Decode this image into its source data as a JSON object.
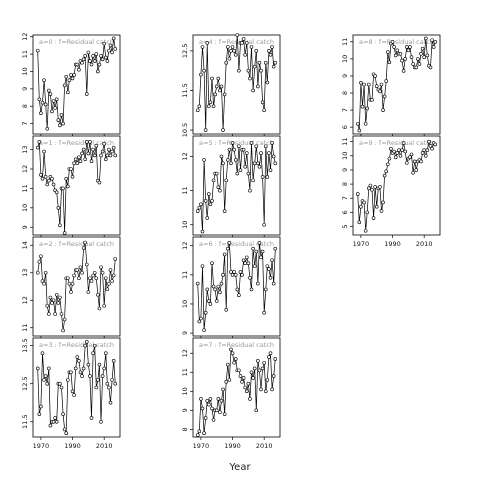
{
  "chart_data": {
    "type": "line",
    "xlabel": "Year",
    "x_ticks": [
      1970,
      1990,
      2010
    ],
    "xlim": [
      1965,
      2020
    ],
    "marker": "open-circle",
    "line_color": "#000000",
    "strip_text_color": "#999999",
    "panels": [
      {
        "label": "a=0 : f=Residual catch",
        "ylim": [
          6.4,
          12.1
        ],
        "yticks": [
          7,
          8,
          9,
          10,
          11,
          12
        ],
        "years": [
          1968,
          1969,
          1970,
          1971,
          1972,
          1973,
          1974,
          1975,
          1976,
          1977,
          1978,
          1979,
          1980,
          1981,
          1982,
          1983,
          1984,
          1985,
          1986,
          1987,
          1988,
          1989,
          1990,
          1991,
          1992,
          1993,
          1994,
          1995,
          1996,
          1997,
          1998,
          1999,
          2000,
          2001,
          2002,
          2003,
          2004,
          2005,
          2006,
          2007,
          2008,
          2009,
          2010,
          2011,
          2012,
          2013,
          2014,
          2015,
          2016,
          2017
        ],
        "values": [
          11.2,
          8.4,
          7.6,
          8.2,
          9.5,
          8.1,
          6.7,
          8.9,
          8.7,
          7.7,
          8.3,
          7.9,
          8.4,
          7.2,
          6.9,
          7.5,
          7.0,
          9.2,
          9.7,
          8.8,
          9.5,
          9.8,
          9.6,
          9.8,
          10.4,
          10.4,
          10.1,
          10.6,
          10.5,
          10.7,
          10.9,
          8.7,
          11.1,
          10.6,
          10.4,
          10.9,
          10.6,
          11.0,
          10.0,
          10.4,
          10.9,
          10.7,
          11.6,
          10.8,
          10.6,
          11.2,
          11.5,
          11.1,
          11.9,
          11.3
        ]
      },
      {
        "label": "a=1 : f=Residual catch",
        "ylim": [
          8.6,
          13.7
        ],
        "yticks": [
          9,
          10,
          11,
          12,
          13
        ],
        "years": [
          1968,
          1969,
          1970,
          1971,
          1972,
          1973,
          1974,
          1975,
          1976,
          1977,
          1978,
          1979,
          1980,
          1981,
          1982,
          1983,
          1984,
          1985,
          1986,
          1987,
          1988,
          1989,
          1990,
          1991,
          1992,
          1993,
          1994,
          1995,
          1996,
          1997,
          1998,
          1999,
          2000,
          2001,
          2002,
          2003,
          2004,
          2005,
          2006,
          2007,
          2008,
          2009,
          2010,
          2011,
          2012,
          2013,
          2014,
          2015,
          2016,
          2017
        ],
        "values": [
          13.1,
          13.4,
          11.7,
          11.5,
          12.9,
          11.6,
          11.2,
          11.4,
          11.6,
          11.5,
          11.2,
          10.9,
          10.8,
          10.0,
          9.1,
          11.0,
          11.0,
          8.7,
          11.5,
          11.1,
          12.0,
          12.0,
          11.6,
          12.3,
          12.5,
          12.3,
          12.6,
          12.4,
          12.8,
          13.0,
          12.5,
          13.4,
          12.8,
          13.4,
          12.4,
          13.0,
          12.7,
          13.2,
          11.4,
          11.3,
          12.7,
          12.9,
          13.3,
          12.5,
          12.7,
          13.0,
          12.7,
          12.9,
          13.1,
          12.7
        ]
      },
      {
        "label": "a=2 : f=Residual catch",
        "ylim": [
          10.7,
          14.3
        ],
        "yticks": [
          11.0,
          12.0,
          13.0,
          14.0
        ],
        "years": [
          1968,
          1969,
          1970,
          1971,
          1972,
          1973,
          1974,
          1975,
          1976,
          1977,
          1978,
          1979,
          1980,
          1981,
          1982,
          1983,
          1984,
          1985,
          1986,
          1987,
          1988,
          1989,
          1990,
          1991,
          1992,
          1993,
          1994,
          1995,
          1996,
          1997,
          1998,
          1999,
          2000,
          2001,
          2002,
          2003,
          2004,
          2005,
          2006,
          2007,
          2008,
          2009,
          2010,
          2011,
          2012,
          2013,
          2014,
          2015,
          2016,
          2017
        ],
        "values": [
          13.0,
          13.4,
          13.6,
          12.7,
          12.6,
          13.0,
          11.8,
          11.5,
          12.1,
          11.9,
          12.0,
          11.5,
          12.2,
          11.9,
          12.1,
          11.5,
          10.9,
          11.3,
          12.8,
          12.8,
          12.6,
          12.3,
          12.6,
          12.9,
          13.1,
          13.1,
          12.8,
          13.2,
          13.0,
          13.9,
          14.1,
          13.3,
          12.3,
          12.8,
          12.7,
          12.9,
          13.0,
          12.8,
          12.2,
          11.7,
          13.2,
          13.0,
          11.8,
          12.8,
          12.4,
          12.6,
          13.1,
          12.7,
          12.9,
          13.5
        ]
      },
      {
        "label": "a=3 : f=Residual catch",
        "ylim": [
          11.1,
          13.7
        ],
        "yticks": [
          11.5,
          12.5,
          13.5
        ],
        "years": [
          1968,
          1969,
          1970,
          1971,
          1972,
          1973,
          1974,
          1975,
          1976,
          1977,
          1978,
          1979,
          1980,
          1981,
          1982,
          1983,
          1984,
          1985,
          1986,
          1987,
          1988,
          1989,
          1990,
          1991,
          1992,
          1993,
          1994,
          1995,
          1996,
          1997,
          1998,
          1999,
          2000,
          2001,
          2002,
          2003,
          2004,
          2005,
          2006,
          2007,
          2008,
          2009,
          2010,
          2011,
          2012,
          2013,
          2014,
          2015,
          2016,
          2017
        ],
        "values": [
          12.9,
          11.7,
          11.9,
          13.3,
          12.6,
          12.7,
          12.5,
          12.9,
          11.4,
          11.5,
          11.5,
          11.6,
          11.5,
          12.5,
          12.5,
          12.4,
          11.7,
          11.3,
          11.2,
          12.6,
          12.8,
          12.8,
          12.3,
          12.2,
          12.9,
          13.2,
          13.1,
          12.8,
          12.7,
          12.9,
          13.5,
          13.6,
          13.0,
          12.7,
          11.6,
          13.3,
          13.5,
          12.4,
          12.6,
          13.0,
          11.5,
          12.7,
          12.9,
          13.3,
          12.5,
          12.4,
          12.0,
          12.6,
          13.1,
          12.5
        ]
      },
      {
        "label": "a=4 : f=Residual catch",
        "ylim": [
          10.4,
          12.9
        ],
        "yticks": [
          10.5,
          11.5,
          12.5
        ],
        "years": [
          1968,
          1969,
          1970,
          1971,
          1972,
          1973,
          1974,
          1975,
          1976,
          1977,
          1978,
          1979,
          1980,
          1981,
          1982,
          1983,
          1984,
          1985,
          1986,
          1987,
          1988,
          1989,
          1990,
          1991,
          1992,
          1993,
          1994,
          1995,
          1996,
          1997,
          1998,
          1999,
          2000,
          2001,
          2002,
          2003,
          2004,
          2005,
          2006,
          2007,
          2008,
          2009,
          2010,
          2011,
          2012,
          2013,
          2014,
          2015,
          2016,
          2017
        ],
        "values": [
          11.0,
          11.1,
          11.9,
          12.6,
          12.0,
          10.5,
          12.7,
          11.1,
          11.2,
          11.8,
          11.1,
          11.4,
          11.6,
          11.8,
          11.5,
          11.6,
          10.5,
          11.4,
          12.2,
          12.6,
          12.3,
          12.5,
          12.6,
          12.5,
          12.4,
          12.9,
          12.0,
          12.7,
          12.7,
          12.8,
          12.4,
          12.7,
          12.0,
          11.8,
          12.6,
          11.5,
          12.1,
          12.5,
          11.6,
          12.2,
          12.0,
          11.2,
          11.0,
          12.2,
          11.7,
          12.5,
          12.4,
          12.6,
          12.1,
          12.2
        ]
      },
      {
        "label": "a=5 : f=Residual catch",
        "ylim": [
          9.7,
          12.6
        ],
        "yticks": [
          10.0,
          11.0,
          12.0
        ],
        "years": [
          1968,
          1969,
          1970,
          1971,
          1972,
          1973,
          1974,
          1975,
          1976,
          1977,
          1978,
          1979,
          1980,
          1981,
          1982,
          1983,
          1984,
          1985,
          1986,
          1987,
          1988,
          1989,
          1990,
          1991,
          1992,
          1993,
          1994,
          1995,
          1996,
          1997,
          1998,
          1999,
          2000,
          2001,
          2002,
          2003,
          2004,
          2005,
          2006,
          2007,
          2008,
          2009,
          2010,
          2011,
          2012,
          2013,
          2014,
          2015,
          2016,
          2017
        ],
        "values": [
          10.4,
          10.5,
          10.6,
          9.8,
          11.9,
          10.7,
          10.2,
          10.9,
          10.6,
          10.7,
          11.3,
          11.5,
          11.5,
          11.1,
          11.0,
          12.0,
          11.8,
          10.4,
          11.3,
          11.9,
          12.2,
          11.8,
          12.4,
          12.2,
          11.9,
          11.5,
          12.3,
          11.6,
          12.2,
          12.2,
          11.7,
          12.1,
          11.5,
          11.0,
          12.4,
          11.3,
          11.8,
          12.3,
          11.8,
          11.7,
          12.1,
          11.4,
          10.0,
          12.3,
          11.4,
          12.1,
          11.6,
          12.4,
          12.0,
          11.8
        ]
      },
      {
        "label": "a=6 : f=Residual catch",
        "ylim": [
          8.9,
          12.3
        ],
        "yticks": [
          9.0,
          10.0,
          11.0,
          12.0
        ],
        "years": [
          1968,
          1969,
          1970,
          1971,
          1972,
          1973,
          1974,
          1975,
          1976,
          1977,
          1978,
          1979,
          1980,
          1981,
          1982,
          1983,
          1984,
          1985,
          1986,
          1987,
          1988,
          1989,
          1990,
          1991,
          1992,
          1993,
          1994,
          1995,
          1996,
          1997,
          1998,
          1999,
          2000,
          2001,
          2002,
          2003,
          2004,
          2005,
          2006,
          2007,
          2008,
          2009,
          2010,
          2011,
          2012,
          2013,
          2014,
          2015,
          2016,
          2017
        ],
        "values": [
          10.7,
          9.4,
          9.5,
          11.3,
          9.1,
          9.7,
          10.5,
          10.1,
          10.0,
          11.4,
          10.6,
          10.5,
          10.1,
          10.6,
          10.4,
          10.7,
          11.0,
          11.7,
          9.8,
          11.9,
          12.1,
          11.1,
          11.0,
          11.1,
          11.0,
          10.5,
          10.3,
          11.1,
          11.0,
          11.5,
          11.4,
          11.6,
          11.4,
          10.9,
          10.5,
          11.9,
          11.3,
          11.8,
          10.7,
          12.1,
          11.6,
          11.8,
          9.7,
          10.5,
          11.3,
          11.2,
          10.9,
          11.5,
          10.7,
          11.9
        ]
      },
      {
        "label": "a=7 : f=Residual catch",
        "ylim": [
          7.6,
          12.8
        ],
        "yticks": [
          8,
          9,
          10,
          11,
          12
        ],
        "years": [
          1968,
          1969,
          1970,
          1971,
          1972,
          1973,
          1974,
          1975,
          1976,
          1977,
          1978,
          1979,
          1980,
          1981,
          1982,
          1983,
          1984,
          1985,
          1986,
          1987,
          1988,
          1989,
          1990,
          1991,
          1992,
          1993,
          1994,
          1995,
          1996,
          1997,
          1998,
          1999,
          2000,
          2001,
          2002,
          2003,
          2004,
          2005,
          2006,
          2007,
          2008,
          2009,
          2010,
          2011,
          2012,
          2013,
          2014,
          2015,
          2016,
          2017
        ],
        "values": [
          7.7,
          7.9,
          9.6,
          9.1,
          7.8,
          8.6,
          9.5,
          9.3,
          9.6,
          9.1,
          8.5,
          9.0,
          9.0,
          9.6,
          8.9,
          9.5,
          10.1,
          8.8,
          10.5,
          11.4,
          10.6,
          12.2,
          12.0,
          11.5,
          11.7,
          11.1,
          11.1,
          10.8,
          10.5,
          10.7,
          10.2,
          10.0,
          10.4,
          9.6,
          11.0,
          10.7,
          11.2,
          9.0,
          11.6,
          11.1,
          10.1,
          11.2,
          11.5,
          10.0,
          10.6,
          11.8,
          12.0,
          10.1,
          10.8,
          11.7
        ]
      },
      {
        "label": "a=8 : f=Residual catch",
        "ylim": [
          5.6,
          11.4
        ],
        "yticks": [
          6,
          7,
          8,
          9,
          10,
          11
        ],
        "years": [
          1968,
          1969,
          1970,
          1971,
          1972,
          1973,
          1974,
          1975,
          1976,
          1977,
          1978,
          1979,
          1980,
          1981,
          1982,
          1983,
          1984,
          1985,
          1986,
          1987,
          1988,
          1989,
          1990,
          1991,
          1992,
          1993,
          1994,
          1995,
          1996,
          1997,
          1998,
          1999,
          2000,
          2001,
          2002,
          2003,
          2004,
          2005,
          2006,
          2007,
          2008,
          2009,
          2010,
          2011,
          2012,
          2013,
          2014,
          2015,
          2016,
          2017
        ],
        "values": [
          6.2,
          5.8,
          8.6,
          7.2,
          8.5,
          6.2,
          7.1,
          8.5,
          7.6,
          7.6,
          9.1,
          9.0,
          8.4,
          8.2,
          8.1,
          8.5,
          7.0,
          7.8,
          8.7,
          10.4,
          9.8,
          10.9,
          11.0,
          10.7,
          10.2,
          10.5,
          10.3,
          10.3,
          9.9,
          9.3,
          10.0,
          10.7,
          10.5,
          10.7,
          10.1,
          9.7,
          9.5,
          9.5,
          10.0,
          9.7,
          10.3,
          10.6,
          10.1,
          11.2,
          10.2,
          9.6,
          9.5,
          11.1,
          10.7,
          11.0
        ]
      },
      {
        "label": "a=9 : f=Residual catch",
        "ylim": [
          4.4,
          11.4
        ],
        "yticks": [
          5,
          6,
          7,
          8,
          9,
          10,
          11
        ],
        "years": [
          1968,
          1969,
          1970,
          1971,
          1972,
          1973,
          1974,
          1975,
          1976,
          1977,
          1978,
          1979,
          1980,
          1981,
          1982,
          1983,
          1984,
          1985,
          1986,
          1987,
          1988,
          1989,
          1990,
          1991,
          1992,
          1993,
          1994,
          1995,
          1996,
          1997,
          1998,
          1999,
          2000,
          2001,
          2002,
          2003,
          2004,
          2005,
          2006,
          2007,
          2008,
          2009,
          2010,
          2011,
          2012,
          2013,
          2014,
          2015,
          2016,
          2017
        ],
        "values": [
          7.3,
          5.3,
          6.4,
          6.8,
          6.7,
          4.7,
          6.0,
          7.7,
          7.9,
          7.6,
          5.6,
          7.8,
          6.4,
          7.7,
          7.8,
          6.1,
          6.7,
          8.6,
          8.9,
          9.4,
          9.8,
          10.5,
          10.2,
          10.3,
          9.9,
          10.2,
          10.4,
          10.0,
          10.4,
          10.9,
          10.3,
          9.5,
          9.8,
          9.9,
          10.1,
          8.8,
          9.6,
          9.0,
          9.6,
          9.7,
          9.6,
          10.2,
          10.4,
          10.0,
          10.4,
          11.0,
          10.7,
          10.5,
          10.9,
          10.8
        ]
      }
    ]
  }
}
